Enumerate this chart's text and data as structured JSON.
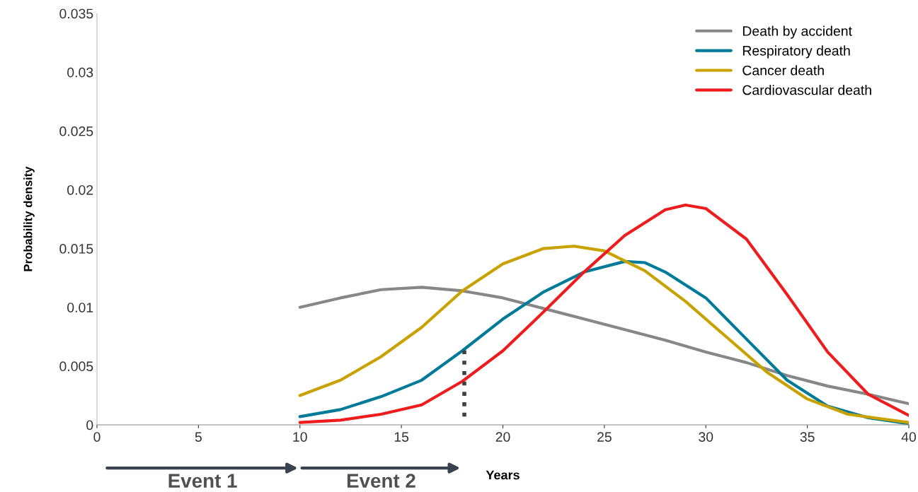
{
  "chart_data": {
    "type": "line",
    "xlabel": "Years",
    "ylabel": "Probability density",
    "xlim": [
      0,
      40
    ],
    "xticks": [
      0,
      5,
      10,
      15,
      20,
      25,
      30,
      35,
      40
    ],
    "ylim": [
      0,
      0.035
    ],
    "yticks": [
      0,
      0.005,
      0.01,
      0.015,
      0.02,
      0.025,
      0.03,
      0.035
    ],
    "grid": false,
    "legend": "top right",
    "marker": "none",
    "line_style": "solid",
    "series": [
      {
        "name": "Death by accident",
        "color": "#878787",
        "x": [
          10,
          12,
          14,
          16,
          18,
          20,
          22,
          24,
          26,
          28,
          30,
          32,
          34,
          36,
          38,
          40
        ],
        "values": [
          0.01,
          0.0108,
          0.0115,
          0.0117,
          0.0114,
          0.0108,
          0.0099,
          0.009,
          0.0081,
          0.0072,
          0.0062,
          0.0053,
          0.0042,
          0.0033,
          0.0026,
          0.0018
        ]
      },
      {
        "name": "Respiratory death",
        "color": "#007a99",
        "x": [
          10,
          12,
          14,
          16,
          18,
          20,
          22,
          24,
          26,
          27,
          28,
          30,
          32,
          34,
          36,
          38,
          40
        ],
        "values": [
          0.0007,
          0.0013,
          0.0024,
          0.0038,
          0.0063,
          0.009,
          0.0113,
          0.013,
          0.0139,
          0.0138,
          0.013,
          0.0108,
          0.0073,
          0.0038,
          0.0016,
          0.0006,
          0.0001
        ]
      },
      {
        "name": "Cancer death",
        "color": "#c9a100",
        "x": [
          10,
          12,
          14,
          16,
          18,
          20,
          22,
          23.5,
          25,
          27,
          29,
          31,
          33,
          35,
          37,
          40
        ],
        "values": [
          0.0025,
          0.0038,
          0.0058,
          0.0083,
          0.0114,
          0.0137,
          0.015,
          0.0152,
          0.0148,
          0.0131,
          0.0105,
          0.0075,
          0.0045,
          0.0022,
          0.0009,
          0.0002
        ]
      },
      {
        "name": "Cardiovascular death",
        "color": "#ee1c1c",
        "x": [
          10,
          12,
          14,
          16,
          18,
          20,
          22,
          24,
          26,
          28,
          29,
          30,
          32,
          34,
          36,
          38,
          40
        ],
        "values": [
          0.0002,
          0.0004,
          0.0009,
          0.0017,
          0.0037,
          0.0063,
          0.0096,
          0.013,
          0.0161,
          0.0183,
          0.0187,
          0.0184,
          0.0158,
          0.0111,
          0.0062,
          0.0026,
          0.0008
        ]
      },
      {
        "color": "#404040",
        "line_style": "dotted",
        "x": [
          18.1,
          18.1
        ],
        "values": [
          0.0007,
          0.0066
        ]
      }
    ],
    "annotations": [
      "Event 1",
      "Event 2"
    ]
  }
}
